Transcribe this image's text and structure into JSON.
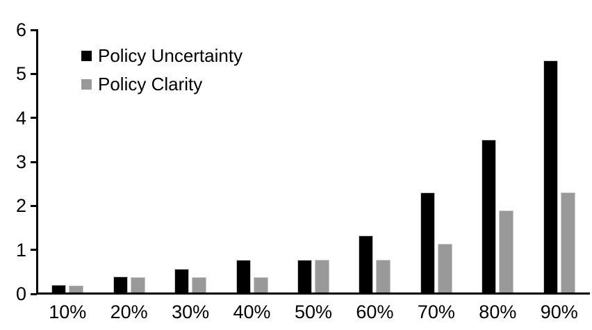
{
  "chart_data": {
    "type": "bar",
    "title": "",
    "xlabel": "",
    "ylabel": "",
    "categories": [
      "10%",
      "20%",
      "30%",
      "40%",
      "50%",
      "60%",
      "70%",
      "80%",
      "90%"
    ],
    "series": [
      {
        "name": "Policy Uncertainty",
        "color": "#000000",
        "values": [
          0.2,
          0.4,
          0.57,
          0.77,
          0.78,
          1.33,
          2.3,
          3.5,
          5.3
        ]
      },
      {
        "name": "Policy Clarity",
        "color": "#999999",
        "values": [
          0.19,
          0.38,
          0.38,
          0.38,
          0.77,
          0.77,
          1.13,
          1.9,
          2.3
        ]
      }
    ],
    "ylim": [
      0,
      6
    ],
    "yticks": [
      "0",
      "1",
      "2",
      "3",
      "4",
      "5",
      "6"
    ],
    "grid": false,
    "legend_position": "top-left-inside",
    "bar_outline_color": "#c9c9c9",
    "axis_color": "#000000"
  }
}
